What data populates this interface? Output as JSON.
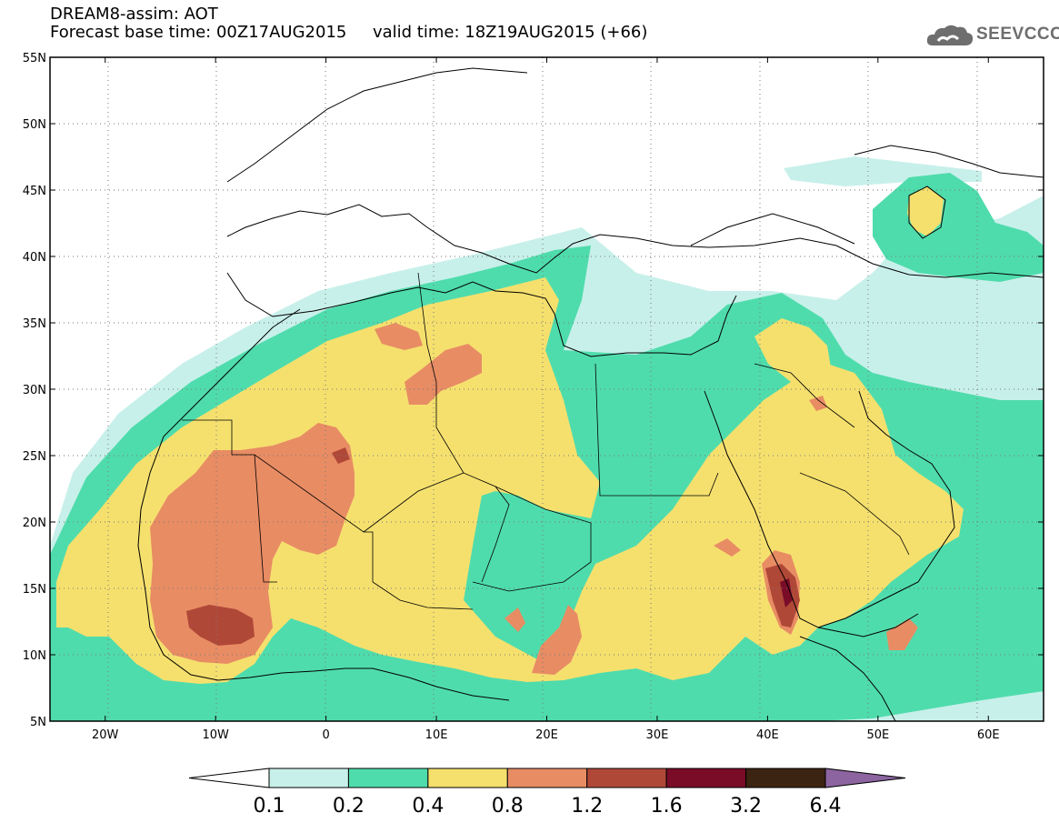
{
  "title": {
    "line1": "DREAM8-assim: AOT",
    "line2": "Forecast base time: 00Z17AUG2015     valid time: 18Z19AUG2015 (+66)"
  },
  "logo": {
    "text": "SEEVCCC",
    "icon": "cloud-icon",
    "color": "#6e6e6e"
  },
  "map": {
    "variable": "AOT",
    "lon_range": [
      -25,
      65
    ],
    "lat_range": [
      5,
      55
    ],
    "grid": "dotted",
    "lon_ticks": [
      {
        "value": -20,
        "label": "20W"
      },
      {
        "value": -10,
        "label": "10W"
      },
      {
        "value": 0,
        "label": "0"
      },
      {
        "value": 10,
        "label": "10E"
      },
      {
        "value": 20,
        "label": "20E"
      },
      {
        "value": 30,
        "label": "30E"
      },
      {
        "value": 40,
        "label": "40E"
      },
      {
        "value": 50,
        "label": "50E"
      },
      {
        "value": 60,
        "label": "60E"
      }
    ],
    "lat_ticks": [
      {
        "value": 5,
        "label": "5N"
      },
      {
        "value": 10,
        "label": "10N"
      },
      {
        "value": 15,
        "label": "15N"
      },
      {
        "value": 20,
        "label": "20N"
      },
      {
        "value": 25,
        "label": "25N"
      },
      {
        "value": 30,
        "label": "30N"
      },
      {
        "value": 35,
        "label": "35N"
      },
      {
        "value": 40,
        "label": "40N"
      },
      {
        "value": 45,
        "label": "45N"
      },
      {
        "value": 50,
        "label": "50N"
      },
      {
        "value": 55,
        "label": "55N"
      }
    ]
  },
  "colorbar": {
    "labels": [
      "0.1",
      "0.2",
      "0.4",
      "0.8",
      "1.2",
      "1.6",
      "3.2",
      "6.4"
    ],
    "under_color": "#ffffff",
    "colors": [
      "#c8f0ea",
      "#4fdcac",
      "#f5e06e",
      "#e88c64",
      "#b04838",
      "#7a0c28",
      "#3c2412"
    ],
    "over_color": "#8c64a0"
  }
}
